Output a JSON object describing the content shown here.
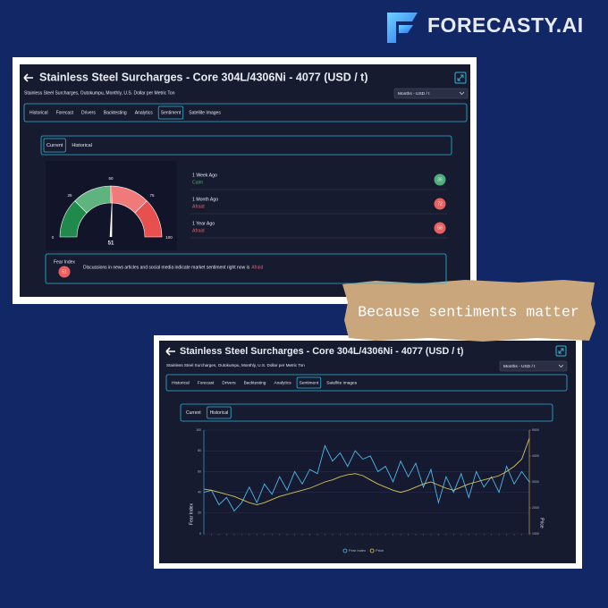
{
  "brand": "FORECASTY.AI",
  "tagline": "Because sentiments matter",
  "screens": [
    {
      "title": "Stainless Steel Surcharges - Core 304L/4306Ni - 4077 (USD / t)",
      "subtitle": "Stainless Steel Surcharges, Outokumpu, Monthly, U.S. Dollar per Metric Ton",
      "unit_select": "Months - USD / t",
      "tabs": [
        "Historical",
        "Forecast",
        "Drivers",
        "Backtesting",
        "Analytics",
        "Sentiment",
        "Satellite Images"
      ],
      "active_tab": "Sentiment",
      "subtabs": [
        "Current",
        "Historical"
      ],
      "active_subtab": "Current",
      "gauge": {
        "value": 51,
        "ticks": [
          0,
          25,
          50,
          75,
          100
        ],
        "band_colors": [
          "#1f8a4c",
          "#5fb37e",
          "#f07a7a",
          "#e85050"
        ]
      },
      "history": [
        {
          "period": "1 Week Ago",
          "label": "Calm",
          "value": 36,
          "color": "#4caf7d"
        },
        {
          "period": "1 Month Ago",
          "label": "Afraid",
          "value": 72,
          "color": "#e86060"
        },
        {
          "period": "1 Year Ago",
          "label": "Afraid",
          "value": 58,
          "color": "#e86060"
        }
      ],
      "fear_index": {
        "title": "Fear Index",
        "value": 51,
        "color": "#e86060",
        "text": "Discussions in news articles and social media indicate market sentiment right now is",
        "sentiment": "Afraid"
      }
    },
    {
      "title": "Stainless Steel Surcharges - Core 304L/4306Ni - 4077 (USD / t)",
      "subtitle": "Stainless Steel Surcharges, Outokumpu, Monthly, U.S. Dollar per Metric Ton",
      "unit_select": "Months - USD / t",
      "tabs": [
        "Historical",
        "Forecast",
        "Drivers",
        "Backtesting",
        "Analytics",
        "Sentiment",
        "Satellite images"
      ],
      "active_tab": "Sentiment",
      "subtabs": [
        "Current",
        "Historical"
      ],
      "active_subtab": "Historical",
      "chart": {
        "type": "line",
        "y_label": "Fear Index",
        "y2_label": "Price",
        "ylim": [
          0,
          100
        ],
        "yticks": [
          0,
          20,
          40,
          60,
          80,
          100
        ],
        "y2lim": [
          1000,
          5000
        ],
        "y2ticks": [
          1000,
          2000,
          3000,
          4000,
          5000
        ],
        "series": [
          {
            "name": "Fear Index",
            "color": "#4fb6e8",
            "values": [
              40,
              42,
              28,
              35,
              22,
              30,
              45,
              30,
              48,
              38,
              55,
              42,
              60,
              48,
              62,
              58,
              85,
              70,
              78,
              65,
              80,
              72,
              75,
              60,
              65,
              50,
              70,
              55,
              68,
              45,
              62,
              30,
              55,
              40,
              58,
              35,
              60,
              45,
              55,
              40,
              65,
              48,
              60,
              50
            ]
          },
          {
            "name": "Price",
            "color": "#d8c25a",
            "axis": "y2",
            "values": [
              2720,
              2680,
              2600,
              2520,
              2440,
              2320,
              2200,
              2120,
              2200,
              2320,
              2440,
              2520,
              2600,
              2680,
              2760,
              2880,
              3000,
              3080,
              3200,
              3280,
              3320,
              3240,
              3080,
              2920,
              2800,
              2680,
              2600,
              2680,
              2800,
              2920,
              3000,
              2880,
              2760,
              2680,
              2800,
              2920,
              3000,
              3080,
              3160,
              3240,
              3400,
              3600,
              3880,
              4680
            ]
          }
        ]
      }
    }
  ]
}
